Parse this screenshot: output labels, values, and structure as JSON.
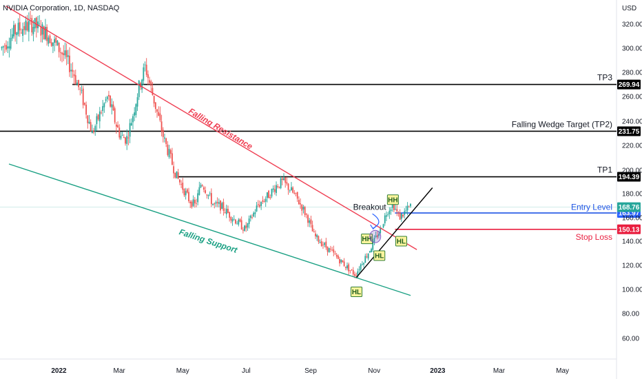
{
  "chart_data": {
    "type": "candlestick",
    "title": "NVIDIA Corporation, 1D, NASDAQ",
    "currency": "USD",
    "y_ticks": [
      60,
      80,
      100,
      120,
      140,
      160,
      180,
      200,
      220,
      240,
      260,
      280,
      300,
      320
    ],
    "y_tick_labels": [
      "60.00",
      "80.00",
      "100.00",
      "120.00",
      "140.00",
      "160.00",
      "180.00",
      "200.00",
      "220.00",
      "240.00",
      "260.00",
      "280.00",
      "300.00",
      "320.00"
    ],
    "x_ticks": [
      {
        "label": "2022",
        "t": 1
      },
      {
        "label": "Mar",
        "t": 59
      },
      {
        "label": "May",
        "t": 120
      },
      {
        "label": "Jul",
        "t": 181
      },
      {
        "label": "Sep",
        "t": 243
      },
      {
        "label": "Nov",
        "t": 304
      },
      {
        "label": "2023",
        "t": 365
      },
      {
        "label": "Mar",
        "t": 424
      },
      {
        "label": "May",
        "t": 485
      }
    ],
    "price_keypoints": [
      [
        -54,
        300
      ],
      [
        -40,
        315
      ],
      [
        -25,
        320
      ],
      [
        -10,
        312
      ],
      [
        5,
        295
      ],
      [
        15,
        280
      ],
      [
        25,
        255
      ],
      [
        33,
        230
      ],
      [
        40,
        245
      ],
      [
        48,
        260
      ],
      [
        55,
        240
      ],
      [
        60,
        228
      ],
      [
        66,
        225
      ],
      [
        72,
        245
      ],
      [
        78,
        268
      ],
      [
        84,
        285
      ],
      [
        90,
        265
      ],
      [
        96,
        245
      ],
      [
        102,
        225
      ],
      [
        108,
        210
      ],
      [
        114,
        195
      ],
      [
        120,
        185
      ],
      [
        126,
        175
      ],
      [
        132,
        170
      ],
      [
        138,
        190
      ],
      [
        144,
        180
      ],
      [
        150,
        170
      ],
      [
        156,
        170
      ],
      [
        162,
        165
      ],
      [
        168,
        160
      ],
      [
        174,
        155
      ],
      [
        180,
        150
      ],
      [
        186,
        160
      ],
      [
        192,
        170
      ],
      [
        198,
        175
      ],
      [
        204,
        180
      ],
      [
        210,
        187
      ],
      [
        216,
        190
      ],
      [
        222,
        185
      ],
      [
        228,
        178
      ],
      [
        234,
        170
      ],
      [
        240,
        160
      ],
      [
        246,
        145
      ],
      [
        252,
        140
      ],
      [
        258,
        135
      ],
      [
        264,
        130
      ],
      [
        270,
        125
      ],
      [
        276,
        120
      ],
      [
        282,
        115
      ],
      [
        286,
        112
      ],
      [
        292,
        122
      ],
      [
        298,
        130
      ],
      [
        304,
        140
      ],
      [
        310,
        150
      ],
      [
        316,
        165
      ],
      [
        322,
        172
      ],
      [
        328,
        160
      ],
      [
        334,
        165
      ],
      [
        340,
        170
      ]
    ],
    "horizontal_levels": [
      {
        "name": "TP3",
        "label": "TP3",
        "value": 269.94,
        "value_label": "269.94",
        "color": "#000000"
      },
      {
        "name": "TP2",
        "label": "Falling Wedge Target (TP2)",
        "value": 231.75,
        "value_label": "231.75",
        "color": "#000000"
      },
      {
        "name": "TP1",
        "label": "TP1",
        "value": 194.39,
        "value_label": "194.39",
        "color": "#000000"
      },
      {
        "name": "Entry",
        "label": "Entry Level",
        "value": 163.97,
        "value_label": "163.97",
        "color": "#1e53e5"
      },
      {
        "name": "StopLoss",
        "label": "Stop Loss",
        "value": 150.13,
        "value_label": "150.13",
        "color": "#e91e3f"
      }
    ],
    "last_price": {
      "value": 168.76,
      "value_label": "168.76",
      "color": "#26a69a"
    },
    "trendlines": [
      {
        "name": "Falling Resistance",
        "label": "Falling Resistance",
        "color": "#ef3e52",
        "from": [
          -50,
          335
        ],
        "to": [
          345,
          133
        ]
      },
      {
        "name": "Falling Support",
        "label": "Falling Support",
        "color": "#1aa083",
        "from": [
          -47,
          205
        ],
        "to": [
          339,
          95
        ]
      },
      {
        "name": "Uptrend",
        "label": "",
        "color": "#000000",
        "from": [
          287,
          110
        ],
        "to": [
          360,
          185
        ]
      }
    ],
    "swing_labels": [
      {
        "label": "HL",
        "t": 287,
        "p": 98
      },
      {
        "label": "HH",
        "t": 297,
        "p": 142
      },
      {
        "label": "HL",
        "t": 309,
        "p": 128
      },
      {
        "label": "HH",
        "t": 322,
        "p": 175
      },
      {
        "label": "HL",
        "t": 330,
        "p": 140
      }
    ],
    "annotations": [
      {
        "label": "Breakout",
        "t": 297,
        "p": 169
      }
    ]
  }
}
